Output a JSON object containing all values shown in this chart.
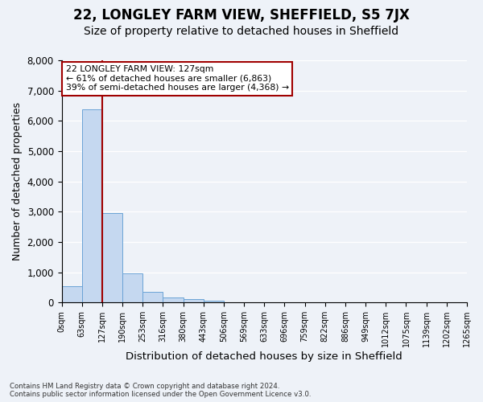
{
  "title1": "22, LONGLEY FARM VIEW, SHEFFIELD, S5 7JX",
  "title2": "Size of property relative to detached houses in Sheffield",
  "xlabel": "Distribution of detached houses by size in Sheffield",
  "ylabel": "Number of detached properties",
  "footnote1": "Contains HM Land Registry data © Crown copyright and database right 2024.",
  "footnote2": "Contains public sector information licensed under the Open Government Licence v3.0.",
  "bin_labels": [
    "0sqm",
    "63sqm",
    "127sqm",
    "190sqm",
    "253sqm",
    "316sqm",
    "380sqm",
    "443sqm",
    "506sqm",
    "569sqm",
    "633sqm",
    "696sqm",
    "759sqm",
    "822sqm",
    "886sqm",
    "949sqm",
    "1012sqm",
    "1075sqm",
    "1139sqm",
    "1202sqm",
    "1265sqm"
  ],
  "bar_values": [
    550,
    6380,
    2960,
    960,
    340,
    160,
    100,
    60,
    0,
    0,
    0,
    0,
    0,
    0,
    0,
    0,
    0,
    0,
    0,
    0
  ],
  "bar_color": "#c5d8f0",
  "bar_edge_color": "#6ba3d6",
  "property_line_color": "#a00000",
  "annotation_text": "22 LONGLEY FARM VIEW: 127sqm\n← 61% of detached houses are smaller (6,863)\n39% of semi-detached houses are larger (4,368) →",
  "annotation_box_color": "#ffffff",
  "annotation_box_edge": "#a00000",
  "ylim": [
    0,
    8000
  ],
  "yticks": [
    0,
    1000,
    2000,
    3000,
    4000,
    5000,
    6000,
    7000,
    8000
  ],
  "background_color": "#eef2f8",
  "axes_background": "#eef2f8",
  "grid_color": "#ffffff",
  "title1_fontsize": 12,
  "title2_fontsize": 10,
  "xlabel_fontsize": 9.5,
  "ylabel_fontsize": 9
}
